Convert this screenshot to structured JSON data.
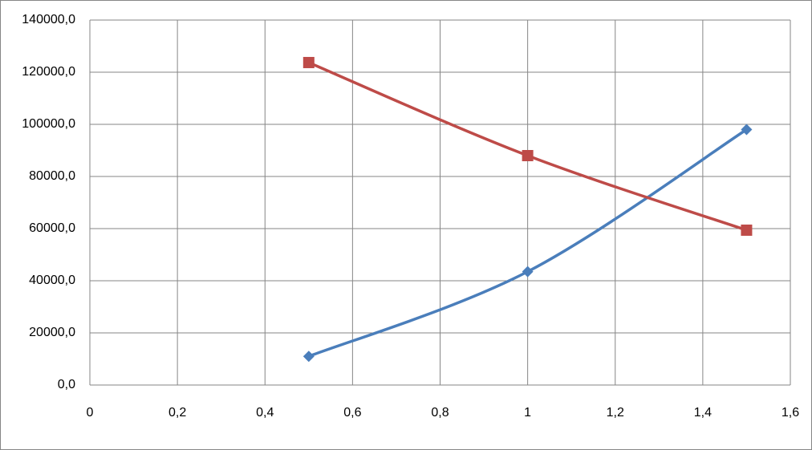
{
  "chart_data": {
    "type": "scatter-line",
    "series": [
      {
        "color": "#4a7ebb",
        "marker": "diamond",
        "x": [
          0.5,
          1,
          1.5
        ],
        "values": [
          11000,
          43500,
          98000
        ]
      },
      {
        "color": "#be4b48",
        "marker": "square",
        "x": [
          0.5,
          1,
          1.5
        ],
        "values": [
          123700,
          88000,
          59400
        ]
      }
    ],
    "xlim": [
      0,
      1.6
    ],
    "xticks": [
      0,
      {
        "value": 0.2,
        "label": "0,2"
      },
      {
        "value": 0.4,
        "label": "0,4"
      },
      {
        "value": 0.6,
        "label": "0,6"
      },
      {
        "value": 0.8,
        "label": "0,8"
      },
      1,
      {
        "value": 1.2,
        "label": "1,2"
      },
      {
        "value": 1.4,
        "label": "1,4"
      },
      {
        "value": 1.6,
        "label": "1,6"
      }
    ],
    "ylim": [
      0,
      140000
    ],
    "yticks": [
      {
        "value": 0,
        "label": "0,0"
      },
      {
        "value": 20000,
        "label": "20000,0"
      },
      {
        "value": 40000,
        "label": "40000,0"
      },
      {
        "value": 60000,
        "label": "60000,0"
      },
      {
        "value": 80000,
        "label": "80000,0"
      },
      {
        "value": 100000,
        "label": "100000,0"
      },
      {
        "value": 120000,
        "label": "120000,0"
      },
      {
        "value": 140000,
        "label": "140000,0"
      }
    ],
    "grid": true
  }
}
